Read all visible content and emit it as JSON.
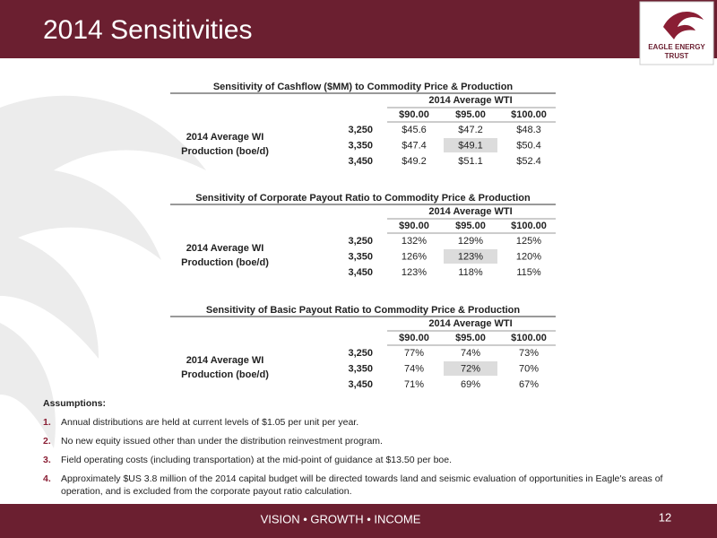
{
  "header": {
    "title": "2014 Sensitivities"
  },
  "logo": {
    "name": "EAGLE ENERGY",
    "subname": "TRUST"
  },
  "tables": [
    {
      "title": "Sensitivity of Cashflow ($MM) to Commodity Price & Production",
      "column_header": "2014 Average WTI",
      "columns": [
        "$90.00",
        "$95.00",
        "$100.00"
      ],
      "row_header": [
        "2014 Average WI",
        "Production (boe/d)"
      ],
      "rows": [
        {
          "label": "3,250",
          "values": [
            "$45.6",
            "$47.2",
            "$48.3"
          ]
        },
        {
          "label": "3,350",
          "values": [
            "$47.4",
            "$49.1",
            "$50.4"
          ]
        },
        {
          "label": "3,450",
          "values": [
            "$49.2",
            "$51.1",
            "$52.4"
          ]
        }
      ]
    },
    {
      "title": "Sensitivity of Corporate Payout Ratio to Commodity Price & Production",
      "column_header": "2014 Average WTI",
      "columns": [
        "$90.00",
        "$95.00",
        "$100.00"
      ],
      "row_header": [
        "2014 Average WI",
        "Production (boe/d)"
      ],
      "rows": [
        {
          "label": "3,250",
          "values": [
            "132%",
            "129%",
            "125%"
          ]
        },
        {
          "label": "3,350",
          "values": [
            "126%",
            "123%",
            "120%"
          ]
        },
        {
          "label": "3,450",
          "values": [
            "123%",
            "118%",
            "115%"
          ]
        }
      ]
    },
    {
      "title": "Sensitivity of Basic Payout Ratio to Commodity Price & Production",
      "column_header": "2014 Average WTI",
      "columns": [
        "$90.00",
        "$95.00",
        "$100.00"
      ],
      "row_header": [
        "2014 Average WI",
        "Production (boe/d)"
      ],
      "rows": [
        {
          "label": "3,250",
          "values": [
            "77%",
            "74%",
            "73%"
          ]
        },
        {
          "label": "3,350",
          "values": [
            "74%",
            "72%",
            "70%"
          ]
        },
        {
          "label": "3,450",
          "values": [
            "71%",
            "69%",
            "67%"
          ]
        }
      ]
    }
  ],
  "assumptions": {
    "title": "Assumptions:",
    "items": [
      {
        "number": "1.",
        "text": "Annual distributions are held at current levels of $1.05 per unit per year."
      },
      {
        "number": "2.",
        "text": "No new equity issued other than under the distribution reinvestment program."
      },
      {
        "number": "3.",
        "text": "Field operating costs (including transportation) at the mid-point of guidance at $13.50 per boe."
      },
      {
        "number": "4.",
        "text": "Approximately $US 3.8 million of the 2014 capital budget will be directed towards land and seismic evaluation of opportunities in Eagle's areas of operation, and is excluded from the corporate payout ratio calculation."
      }
    ]
  },
  "footer": {
    "tagline": "VISION • GROWTH • INCOME",
    "page_number": "12"
  }
}
